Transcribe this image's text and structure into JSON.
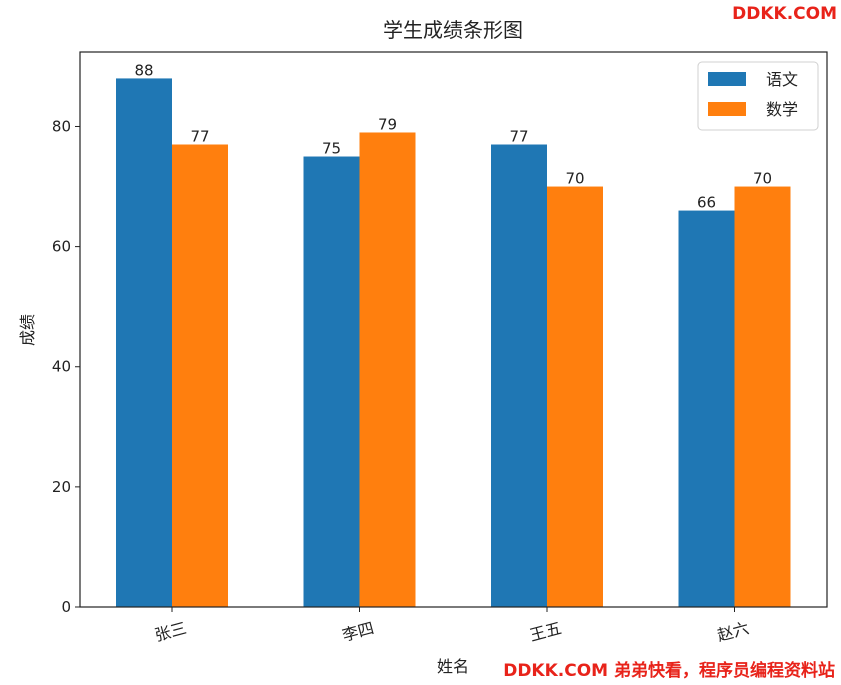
{
  "watermark": {
    "top": "DDKK.COM",
    "bottom": "DDKK.COM 弟弟快看，程序员编程资料站"
  },
  "chart_data": {
    "type": "bar",
    "title": "学生成绩条形图",
    "xlabel": "姓名",
    "ylabel": "成绩",
    "categories": [
      "张三",
      "李四",
      "王五",
      "赵六"
    ],
    "series": [
      {
        "name": "语文",
        "color": "#1f77b4",
        "values": [
          88,
          75,
          77,
          66
        ]
      },
      {
        "name": "数学",
        "color": "#ff7f0e",
        "values": [
          77,
          79,
          70,
          70
        ]
      }
    ],
    "ylim": [
      0,
      92.4
    ],
    "yticks": [
      0,
      20,
      40,
      60,
      80
    ],
    "xtick_rotation_deg": -15,
    "legend_position": "top-right",
    "grid": false
  }
}
